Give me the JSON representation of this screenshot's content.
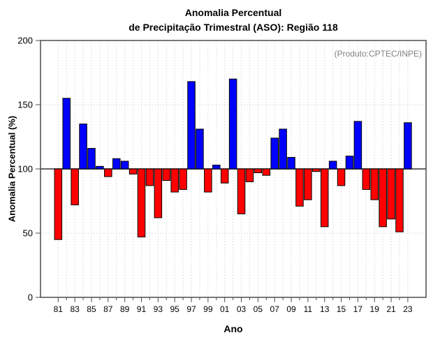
{
  "chart_data": {
    "type": "bar",
    "title_line1": "Anomalia Percentual",
    "title_line2": "de Precipitação Trimestral (ASO): Região 118",
    "annotation": "(Produto:CPTEC/INPE)",
    "xlabel": "Ano",
    "ylabel": "Anomalia Percentual (%)",
    "ylim": [
      0,
      200
    ],
    "yticks": [
      0,
      50,
      100,
      150,
      200
    ],
    "baseline": 100,
    "grid": {
      "horizontal": [
        50,
        100,
        150
      ],
      "vertical": "every-year",
      "style": "dotted"
    },
    "legend": "none",
    "categories": [
      "81",
      "82",
      "83",
      "84",
      "85",
      "86",
      "87",
      "88",
      "89",
      "90",
      "91",
      "92",
      "93",
      "94",
      "95",
      "96",
      "97",
      "98",
      "99",
      "00",
      "01",
      "02",
      "03",
      "04",
      "05",
      "06",
      "07",
      "08",
      "09",
      "10",
      "11",
      "12",
      "13",
      "14",
      "15",
      "16",
      "17",
      "18",
      "19",
      "20",
      "21",
      "22",
      "23"
    ],
    "xtick_labeled": [
      "81",
      "83",
      "85",
      "87",
      "89",
      "91",
      "93",
      "95",
      "97",
      "99",
      "01",
      "03",
      "05",
      "07",
      "09",
      "11",
      "13",
      "15",
      "17",
      "19",
      "21",
      "23"
    ],
    "values": [
      45,
      155,
      72,
      135,
      116,
      102,
      94,
      108,
      106,
      96,
      47,
      87,
      62,
      91,
      82,
      84,
      168,
      131,
      82,
      103,
      89,
      170,
      65,
      90,
      97,
      95,
      124,
      131,
      109,
      71,
      76,
      98,
      55,
      106,
      87,
      110,
      137,
      84,
      76,
      55,
      61,
      51,
      136
    ],
    "colors": {
      "above_baseline": "#0000FF",
      "below_baseline": "#FF0000",
      "bar_outline": "#000000",
      "annotation_text": "#808080",
      "frame": "#4d4d4d",
      "baseline_line": "#666666",
      "gridline": "#c9c9c9"
    }
  }
}
